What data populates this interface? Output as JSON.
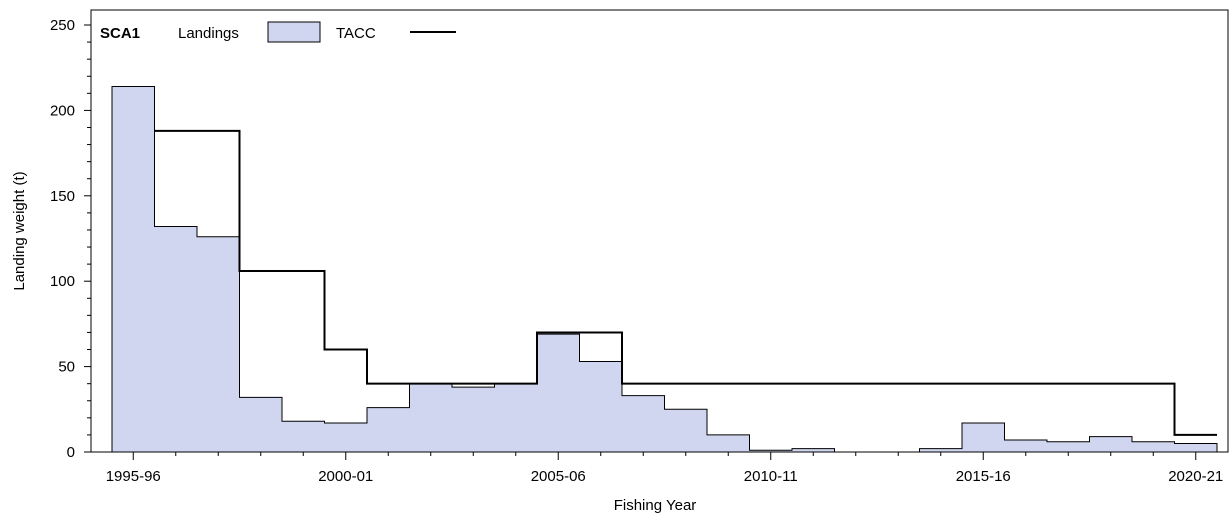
{
  "chart_data": {
    "type": "bar",
    "title": "SCA1",
    "xlabel": "Fishing Year",
    "ylabel": "Landing weight (t)",
    "xticks": [
      "1995-96",
      "2000-01",
      "2005-06",
      "2010-11",
      "2015-16",
      "2020-21"
    ],
    "ylim": [
      0,
      250
    ],
    "yticks": [
      0,
      50,
      100,
      150,
      200,
      250
    ],
    "grid": false,
    "legend": "top-left",
    "colors": {
      "landings_fill": "#d0d6ef",
      "landings_stroke": "#000000",
      "tacc": "#000000"
    },
    "categories": [
      "1995-96",
      "1996-97",
      "1997-98",
      "1998-99",
      "1999-00",
      "2000-01",
      "2001-02",
      "2002-03",
      "2003-04",
      "2004-05",
      "2005-06",
      "2006-07",
      "2007-08",
      "2008-09",
      "2009-10",
      "2010-11",
      "2011-12",
      "2012-13",
      "2013-14",
      "2014-15",
      "2015-16",
      "2016-17",
      "2017-18",
      "2018-19",
      "2019-20",
      "2020-21"
    ],
    "series": [
      {
        "name": "Landings",
        "values": [
          214,
          132,
          126,
          32,
          18,
          17,
          26,
          40,
          38,
          40,
          69,
          53,
          33,
          25,
          10,
          1,
          2,
          0,
          0,
          2,
          17,
          7,
          6,
          9,
          6,
          5
        ]
      },
      {
        "name": "TACC",
        "values": [
          null,
          188,
          188,
          106,
          106,
          60,
          40,
          40,
          40,
          40,
          70,
          70,
          40,
          40,
          40,
          40,
          40,
          40,
          40,
          40,
          40,
          40,
          40,
          40,
          40,
          10
        ]
      }
    ]
  }
}
